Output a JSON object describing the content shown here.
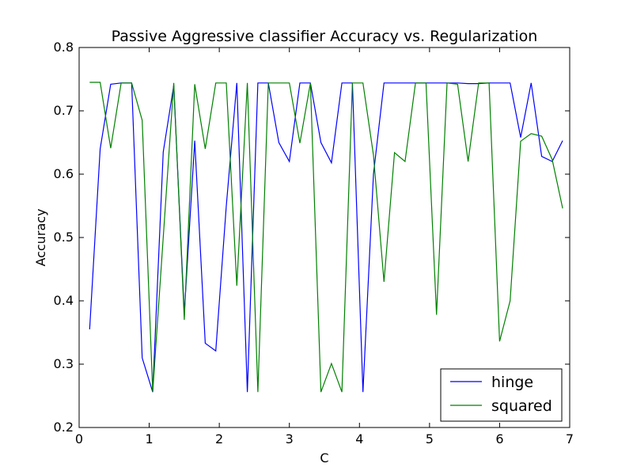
{
  "chart_data": {
    "type": "line",
    "title": "Passive Aggressive classifier Accuracy vs. Regularization",
    "xlabel": "C",
    "ylabel": "Accuracy",
    "xlim": [
      0,
      7
    ],
    "ylim": [
      0.2,
      0.8
    ],
    "xticks": [
      "0",
      "1",
      "2",
      "3",
      "4",
      "5",
      "6",
      "7"
    ],
    "yticks": [
      "0.2",
      "0.3",
      "0.4",
      "0.5",
      "0.6",
      "0.7",
      "0.8"
    ],
    "grid": false,
    "legend_position": "lower-right",
    "x": [
      0.15,
      0.3,
      0.45,
      0.6,
      0.75,
      0.9,
      1.05,
      1.2,
      1.35,
      1.5,
      1.65,
      1.8,
      1.95,
      2.1,
      2.25,
      2.4,
      2.55,
      2.7,
      2.85,
      3.0,
      3.15,
      3.3,
      3.45,
      3.6,
      3.75,
      3.9,
      4.05,
      4.2,
      4.35,
      4.5,
      4.65,
      4.8,
      4.95,
      5.1,
      5.25,
      5.4,
      5.55,
      5.7,
      5.85,
      6.0,
      6.15,
      6.3,
      6.45,
      6.6,
      6.75,
      6.9
    ],
    "series": [
      {
        "name": "hinge",
        "color": "#0000ff",
        "values": [
          0.355,
          0.64,
          0.742,
          0.744,
          0.744,
          0.31,
          0.256,
          0.635,
          0.74,
          0.38,
          0.653,
          0.333,
          0.321,
          0.55,
          0.744,
          0.256,
          0.744,
          0.744,
          0.65,
          0.62,
          0.744,
          0.744,
          0.65,
          0.618,
          0.744,
          0.744,
          0.256,
          0.6,
          0.744,
          0.744,
          0.744,
          0.744,
          0.744,
          0.744,
          0.744,
          0.744,
          0.743,
          0.743,
          0.744,
          0.744,
          0.744,
          0.658,
          0.744,
          0.628,
          0.62,
          0.653
        ]
      },
      {
        "name": "squared",
        "color": "#008000",
        "values": [
          0.745,
          0.745,
          0.641,
          0.744,
          0.744,
          0.685,
          0.256,
          0.5,
          0.744,
          0.37,
          0.742,
          0.64,
          0.744,
          0.744,
          0.424,
          0.744,
          0.256,
          0.744,
          0.744,
          0.744,
          0.649,
          0.744,
          0.256,
          0.301,
          0.256,
          0.744,
          0.744,
          0.63,
          0.43,
          0.634,
          0.62,
          0.744,
          0.744,
          0.378,
          0.744,
          0.742,
          0.62,
          0.744,
          0.744,
          0.336,
          0.4,
          0.652,
          0.664,
          0.66,
          0.623,
          0.546
        ]
      }
    ]
  }
}
